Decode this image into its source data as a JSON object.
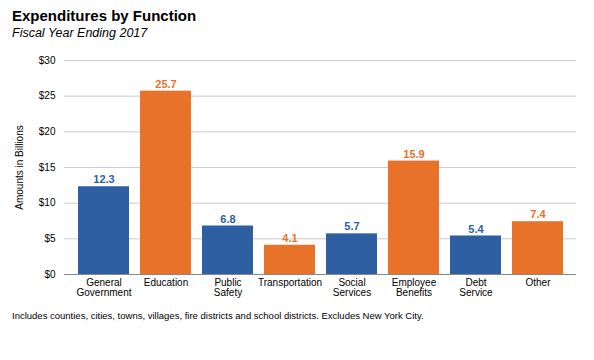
{
  "chart_data": {
    "type": "bar",
    "title": "Expenditures by Function",
    "subtitle": "Fiscal Year Ending 2017",
    "caption": "Includes counties, cities, towns, villages, fire districts and school districts. Excludes New York City.",
    "ylabel": "Amounts in Billions",
    "categories": [
      "General\nGovernment",
      "Education",
      "Public\nSafety",
      "Transportation",
      "Social\nServices",
      "Employee\nBenefits",
      "Debt\nService",
      "Other"
    ],
    "values": [
      12.3,
      25.7,
      6.8,
      4.1,
      5.7,
      15.9,
      5.4,
      7.4
    ],
    "colors": [
      "#2E5FA3",
      "#E8722A",
      "#2E5FA3",
      "#E8722A",
      "#2E5FA3",
      "#E8722A",
      "#2E5FA3",
      "#E8722A"
    ],
    "ylim": [
      0,
      30
    ],
    "yticks": [
      {
        "value": 0,
        "label": "$0"
      },
      {
        "value": 5,
        "label": "$5"
      },
      {
        "value": 10,
        "label": "$10"
      },
      {
        "value": 15,
        "label": "$15"
      },
      {
        "value": 20,
        "label": "$20"
      },
      {
        "value": 25,
        "label": "$25"
      },
      {
        "value": 30,
        "label": "$30"
      }
    ],
    "grid": true,
    "data_labels": true
  }
}
